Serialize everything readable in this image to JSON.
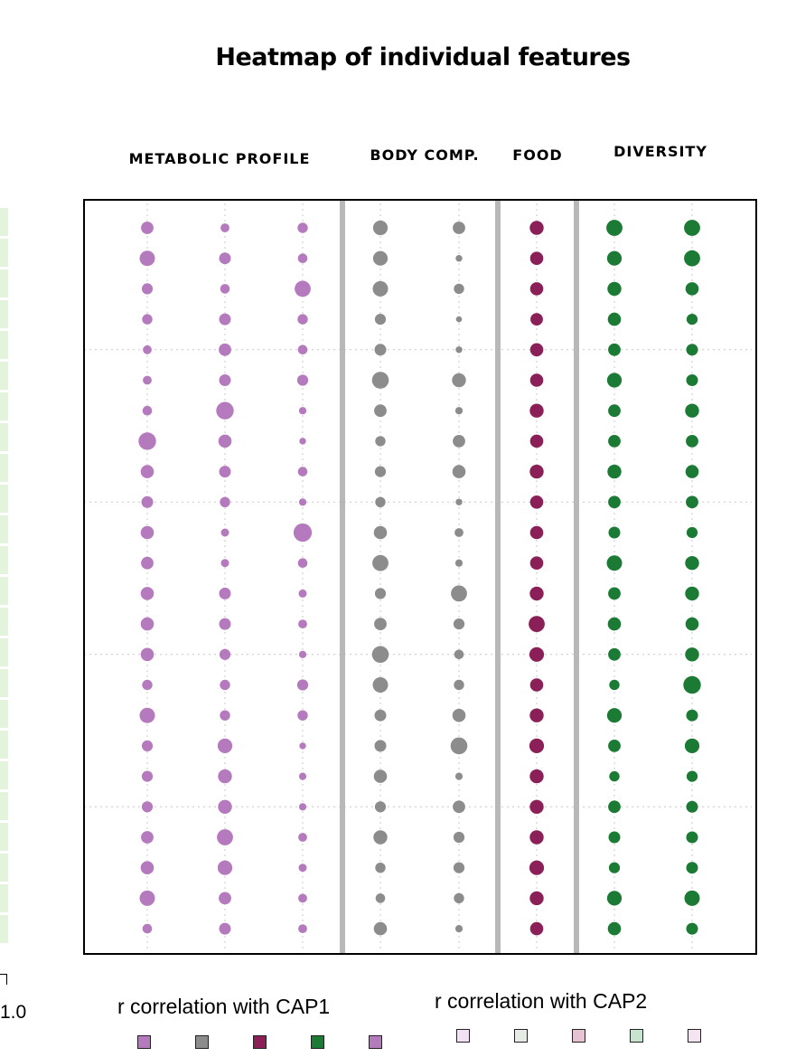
{
  "title": "Heatmap of individual features",
  "groups": [
    {
      "label": "METABOLIC PROFILE",
      "color": "#b57abd"
    },
    {
      "label": "BODY COMP.",
      "color": "#8c8c8c"
    },
    {
      "label": "FOOD",
      "color": "#8b1f58"
    },
    {
      "label": "DIVERSITY",
      "color": "#1b7a33"
    }
  ],
  "legend": {
    "cap1": {
      "title": "r correlation with CAP1",
      "swatches": [
        "#b57abd",
        "#8c8c8c",
        "#8b1f58",
        "#1b7a33",
        "#b57abd"
      ]
    },
    "cap2": {
      "title": "r correlation with CAP2",
      "swatches": [
        "#f2e1f2",
        "#e6ebe6",
        "#e6c3d3",
        "#c8e3cf",
        "#f4e4f2"
      ]
    }
  },
  "left_partial_label": "1.0",
  "chart_data": {
    "type": "heatmap",
    "title": "Heatmap of individual features",
    "columns": [
      {
        "group": "METABOLIC PROFILE",
        "color": "#b57abd"
      },
      {
        "group": "METABOLIC PROFILE",
        "color": "#b57abd"
      },
      {
        "group": "METABOLIC PROFILE",
        "color": "#b57abd"
      },
      {
        "group": "BODY COMP.",
        "color": "#8c8c8c"
      },
      {
        "group": "BODY COMP.",
        "color": "#8c8c8c"
      },
      {
        "group": "FOOD",
        "color": "#8b1f58"
      },
      {
        "group": "DIVERSITY",
        "color": "#1b7a33"
      },
      {
        "group": "DIVERSITY",
        "color": "#1b7a33"
      }
    ],
    "n_rows": 24,
    "magnitude_scale": [
      0,
      1
    ],
    "values": [
      [
        0.55,
        0.3,
        0.4,
        0.7,
        0.55,
        0.65,
        0.8,
        0.8
      ],
      [
        0.75,
        0.5,
        0.35,
        0.7,
        0.15,
        0.6,
        0.7,
        0.8
      ],
      [
        0.45,
        0.35,
        0.8,
        0.75,
        0.4,
        0.6,
        0.65,
        0.6
      ],
      [
        0.4,
        0.5,
        0.4,
        0.45,
        0.1,
        0.55,
        0.6,
        0.45
      ],
      [
        0.3,
        0.55,
        0.35,
        0.5,
        0.15,
        0.6,
        0.55,
        0.5
      ],
      [
        0.3,
        0.5,
        0.45,
        0.85,
        0.65,
        0.6,
        0.7,
        0.5
      ],
      [
        0.35,
        0.9,
        0.2,
        0.55,
        0.2,
        0.65,
        0.55,
        0.65
      ],
      [
        0.9,
        0.6,
        0.15,
        0.4,
        0.55,
        0.6,
        0.55,
        0.55
      ],
      [
        0.6,
        0.5,
        0.35,
        0.45,
        0.6,
        0.65,
        0.65,
        0.6
      ],
      [
        0.5,
        0.4,
        0.2,
        0.4,
        0.15,
        0.6,
        0.55,
        0.55
      ],
      [
        0.6,
        0.25,
        0.95,
        0.6,
        0.3,
        0.6,
        0.5,
        0.45
      ],
      [
        0.55,
        0.25,
        0.35,
        0.8,
        0.2,
        0.6,
        0.75,
        0.65
      ],
      [
        0.6,
        0.5,
        0.25,
        0.45,
        0.8,
        0.65,
        0.55,
        0.65
      ],
      [
        0.6,
        0.5,
        0.3,
        0.55,
        0.45,
        0.8,
        0.6,
        0.6
      ],
      [
        0.6,
        0.45,
        0.2,
        0.85,
        0.35,
        0.7,
        0.55,
        0.65
      ],
      [
        0.4,
        0.4,
        0.45,
        0.75,
        0.4,
        0.6,
        0.4,
        0.9
      ],
      [
        0.75,
        0.4,
        0.4,
        0.5,
        0.6,
        0.65,
        0.7,
        0.5
      ],
      [
        0.45,
        0.7,
        0.15,
        0.5,
        0.85,
        0.7,
        0.55,
        0.7
      ],
      [
        0.45,
        0.65,
        0.2,
        0.6,
        0.2,
        0.65,
        0.4,
        0.45
      ],
      [
        0.45,
        0.65,
        0.2,
        0.45,
        0.55,
        0.65,
        0.55,
        0.5
      ],
      [
        0.55,
        0.8,
        0.3,
        0.65,
        0.45,
        0.65,
        0.5,
        0.5
      ],
      [
        0.6,
        0.7,
        0.25,
        0.4,
        0.45,
        0.7,
        0.45,
        0.5
      ],
      [
        0.75,
        0.55,
        0.3,
        0.35,
        0.4,
        0.65,
        0.7,
        0.75
      ],
      [
        0.35,
        0.5,
        0.3,
        0.6,
        0.2,
        0.6,
        0.6,
        0.5
      ]
    ]
  }
}
